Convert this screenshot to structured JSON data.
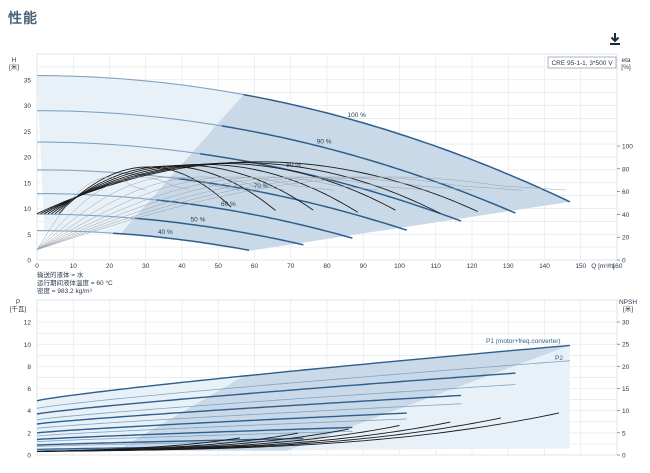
{
  "page": {
    "title": "性能",
    "download_icon": "download-icon"
  },
  "chart_data": [
    {
      "type": "line",
      "panel": "head-efficiency",
      "model_box": "CRE 95-1-1, 3*500 V",
      "ylabel_left": "H\n[米]",
      "ylabel_right": "eta\n[%]",
      "xlabel": "Q [m³/h]",
      "xlim": [
        0,
        160
      ],
      "ylim_left": [
        0,
        40
      ],
      "ylim_right_ticks": [
        0,
        20,
        40,
        60,
        80,
        100
      ],
      "x_ticks": [
        0,
        10,
        20,
        30,
        40,
        50,
        60,
        70,
        80,
        90,
        100,
        110,
        120,
        130,
        140,
        150,
        160
      ],
      "y_ticks_left": [
        0,
        5,
        10,
        15,
        20,
        25,
        30,
        35
      ],
      "grid": true,
      "speed_curves": [
        {
          "name": "100 %",
          "q_max": 147,
          "h0": 35.8
        },
        {
          "name": "90 %",
          "q_max": 132,
          "h0": 29.0
        },
        {
          "name": "80 %",
          "q_max": 118,
          "h0": 22.9
        },
        {
          "name": "70 %",
          "q_max": 103,
          "h0": 17.5
        },
        {
          "name": "60 %",
          "q_max": 88,
          "h0": 12.9
        },
        {
          "name": "50 %",
          "q_max": 74,
          "h0": 8.9
        },
        {
          "name": "40 %",
          "q_max": 59,
          "h0": 5.7
        }
      ],
      "notes": [
        "输送的液体 = 水",
        "运行期间液体温度 = 60 °C",
        "密度 = 983.2 kg/m³"
      ]
    },
    {
      "type": "line",
      "panel": "power-npsh",
      "ylabel_left": "P\n[千瓦]",
      "ylabel_right": "NPSH\n[米]",
      "xlim": [
        0,
        160
      ],
      "ylim_left": [
        0,
        14
      ],
      "y_ticks_left": [
        0,
        2,
        4,
        6,
        8,
        10,
        12
      ],
      "y_ticks_right": [
        0,
        5,
        10,
        15,
        20,
        25,
        30
      ],
      "grid": true,
      "series_labels": [
        "P1 (motor+freq.converter)",
        "P2"
      ],
      "p1_curves": [
        {
          "q_max": 147,
          "p0": 4.9,
          "p_max": 9.9
        },
        {
          "q_max": 132,
          "p0": 3.7,
          "p_max": 7.4
        },
        {
          "q_max": 118,
          "p0": 2.8,
          "p_max": 5.4
        },
        {
          "q_max": 103,
          "p0": 2.0,
          "p_max": 3.8
        },
        {
          "q_max": 88,
          "p0": 1.4,
          "p_max": 2.5
        },
        {
          "q_max": 74,
          "p0": 0.9,
          "p_max": 1.5
        },
        {
          "q_max": 59,
          "p0": 0.5,
          "p_max": 0.8
        }
      ]
    }
  ]
}
